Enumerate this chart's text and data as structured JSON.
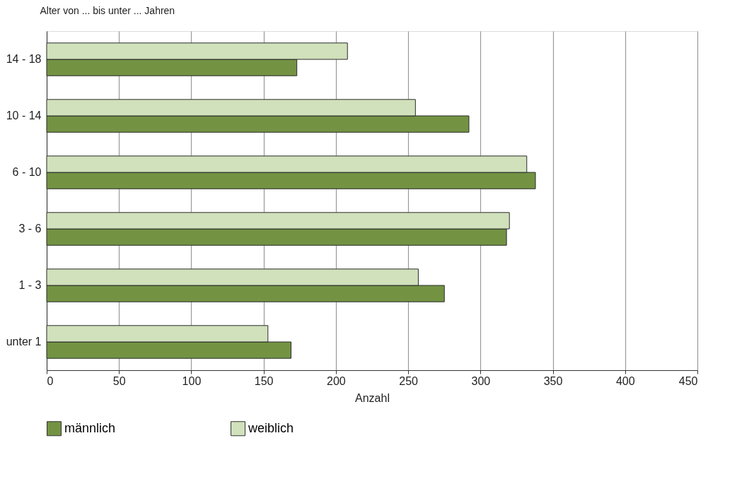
{
  "chart_data": {
    "type": "bar",
    "orientation": "horizontal",
    "ylabel": "Alter von ... bis unter ... Jahren",
    "xlabel": "Anzahl",
    "categories": [
      "14 - 18",
      "10 - 14",
      "6 - 10",
      "3 - 6",
      "1 - 3",
      "unter 1"
    ],
    "series": [
      {
        "name": "männlich",
        "color": "#739343",
        "values": [
          173,
          292,
          338,
          318,
          275,
          169
        ]
      },
      {
        "name": "weiblich",
        "color": "#d0e1bb",
        "values": [
          208,
          255,
          332,
          320,
          257,
          153
        ]
      }
    ],
    "xlim": [
      0,
      450
    ],
    "xticks": [
      0,
      50,
      100,
      150,
      200,
      250,
      300,
      350,
      400,
      450
    ],
    "grid": "x",
    "legend": "bottom"
  }
}
